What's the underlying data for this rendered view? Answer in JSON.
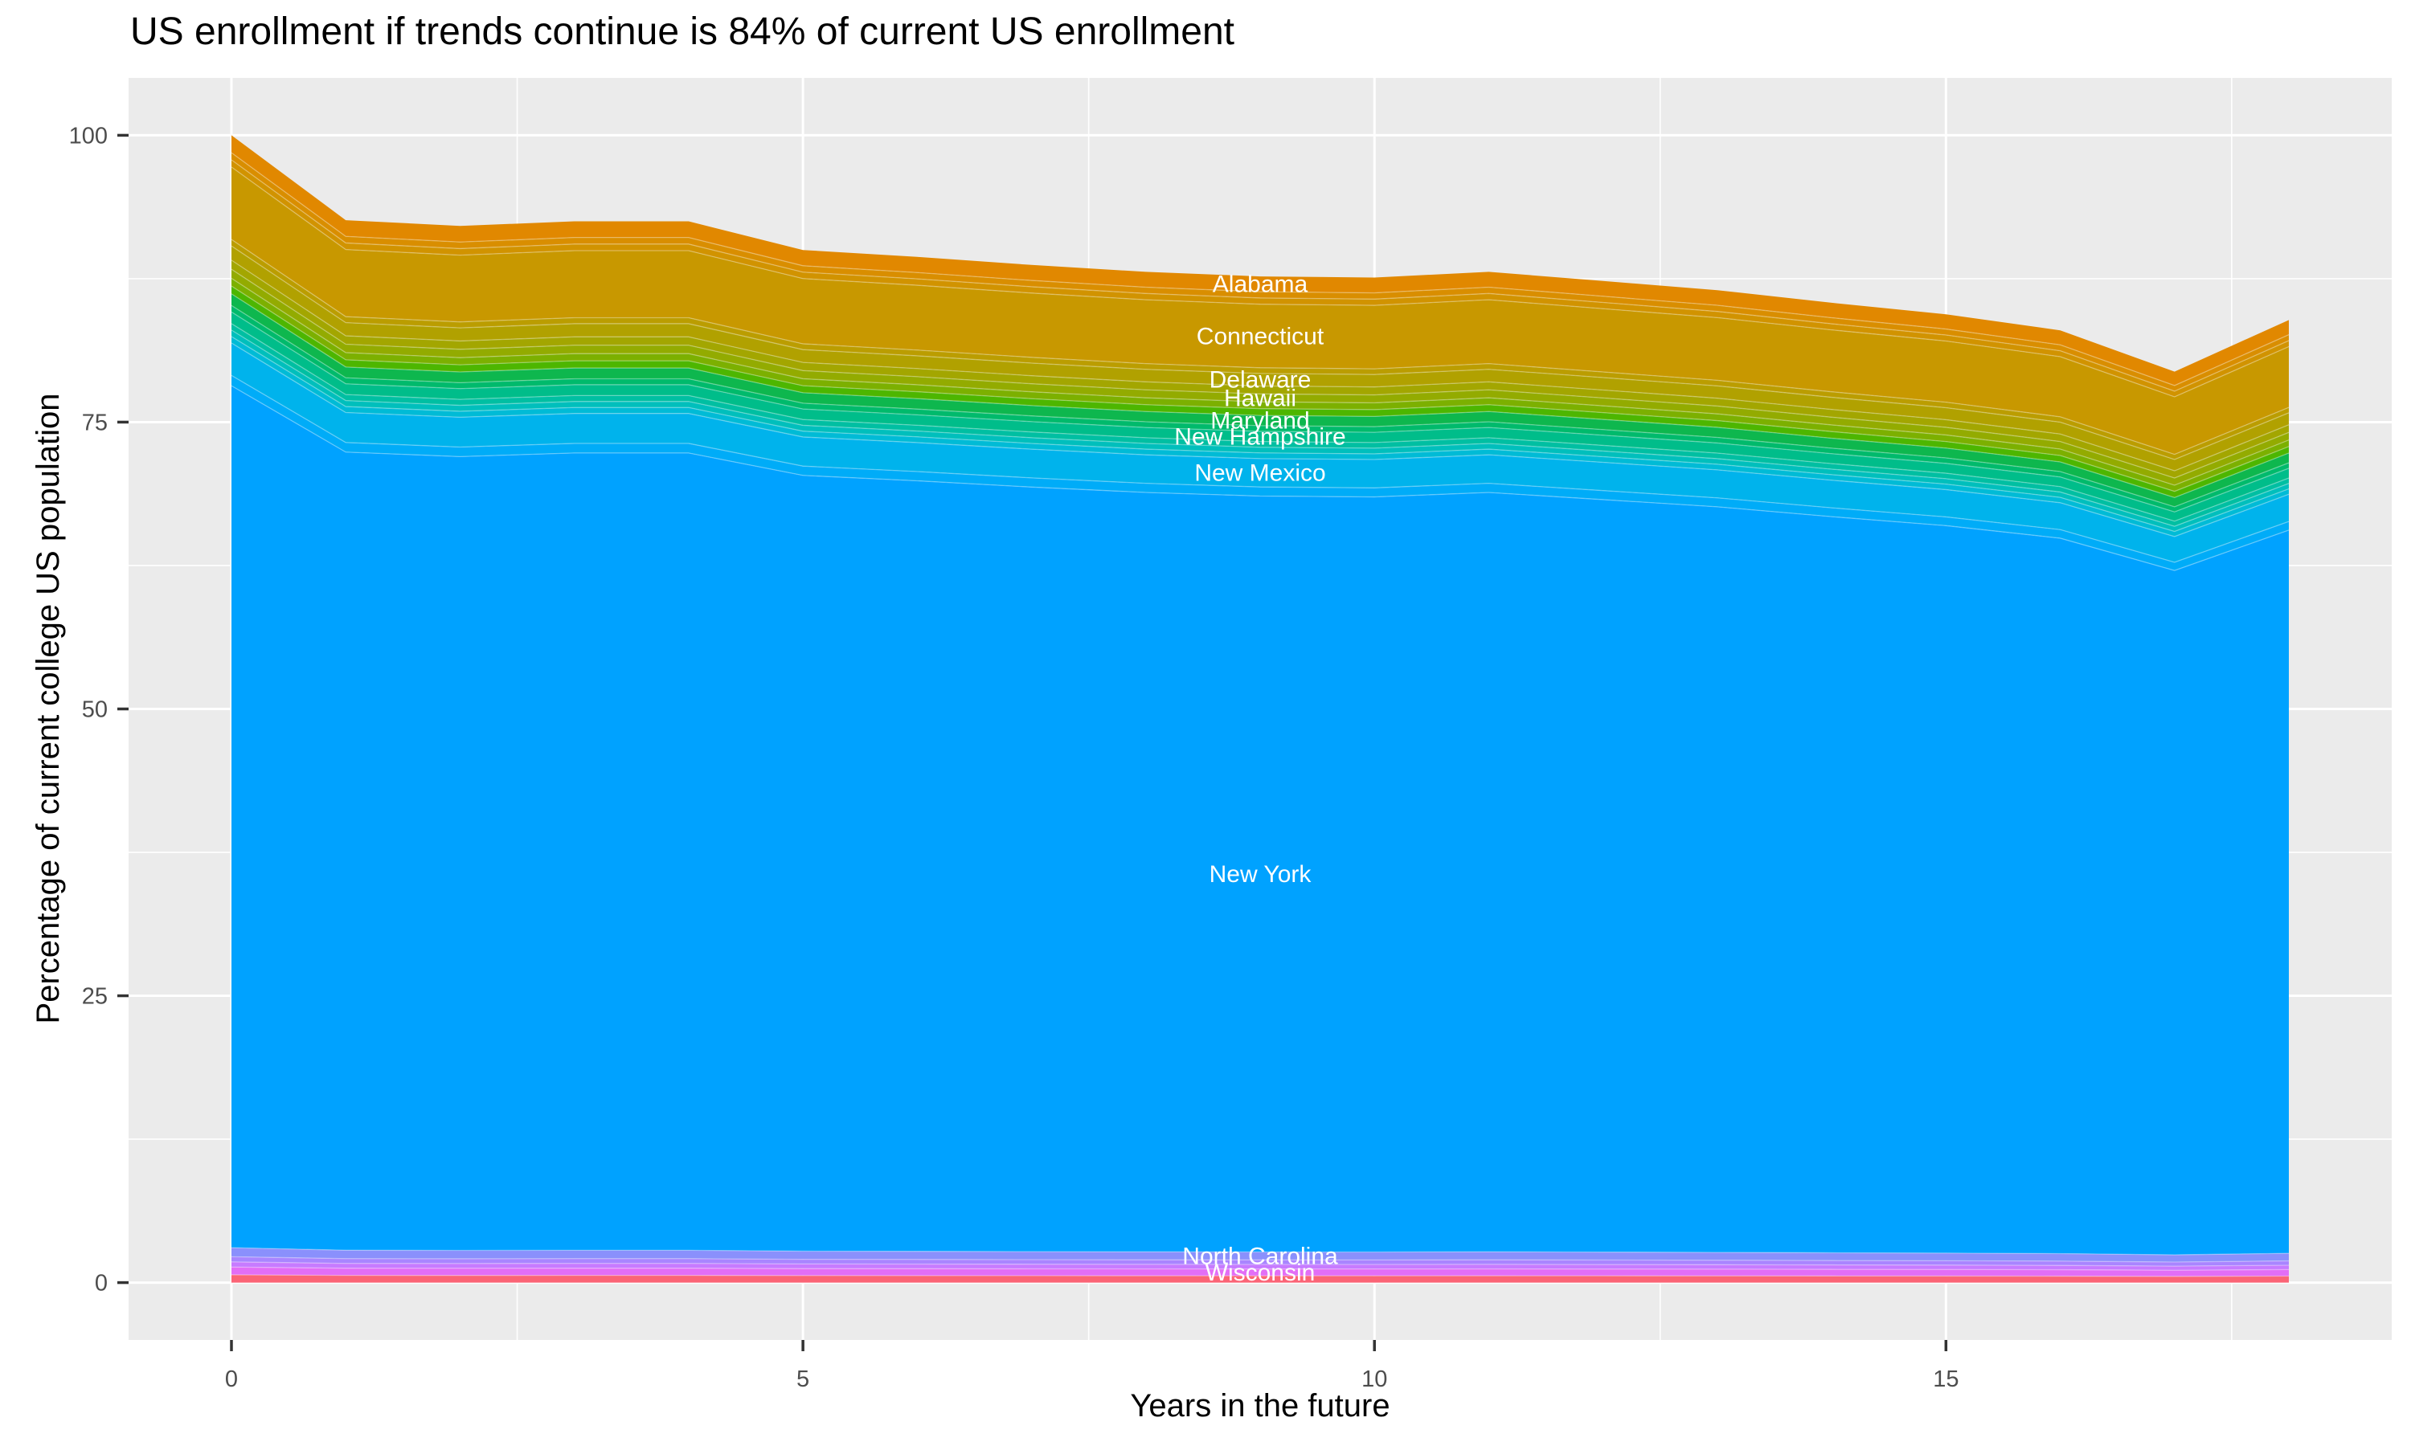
{
  "title": "US enrollment if trends continue is 84% of current US enrollment",
  "axes": {
    "x_label": "Years in the future",
    "y_label": "Percentage of current college US population",
    "x_tick_labels": [
      "0",
      "5",
      "10",
      "15"
    ],
    "y_tick_labels": [
      "0",
      "25",
      "50",
      "75",
      "100"
    ]
  },
  "colors": {
    "page_background": "#FFFFFF",
    "panel_background": "#EBEBEB",
    "gridline": "#FFFFFF",
    "tick_mark": "#333333",
    "tick_label_text": "#4D4D4D",
    "title_text": "#000000",
    "state_label_text": "#FFFFFF"
  },
  "chart_data": {
    "type": "area",
    "stacked": true,
    "title": "US enrollment if trends continue is 84% of current US enrollment",
    "xlabel": "Years in the future",
    "ylabel": "Percentage of current college US population",
    "x": [
      0,
      1,
      2,
      3,
      4,
      5,
      6,
      7,
      8,
      9,
      10,
      11,
      12,
      13,
      14,
      15,
      16,
      17,
      18
    ],
    "total_percent": [
      100,
      92.6,
      92.1,
      92.5,
      92.5,
      90.0,
      89.4,
      88.7,
      88.1,
      87.7,
      87.6,
      88.1,
      87.3,
      86.5,
      85.4,
      84.4,
      83.0,
      79.4,
      83.9
    ],
    "final_value_percent": 84,
    "xlim": [
      -0.9,
      18.9
    ],
    "ylim": [
      -5,
      105
    ],
    "x_ticks": [
      0,
      5,
      10,
      15
    ],
    "y_ticks": [
      0,
      25,
      50,
      75,
      100
    ],
    "x_minor_ticks": [
      2.5,
      7.5,
      12.5,
      17.5
    ],
    "y_minor_ticks": [
      12.5,
      37.5,
      62.5,
      87.5
    ],
    "grid": true,
    "legend": "none",
    "label_x": 9,
    "state_labels": [
      "Alabama",
      "Connecticut",
      "Delaware",
      "Hawaii",
      "Maryland",
      "New Hampshire",
      "New Mexico",
      "New York",
      "North Carolina",
      "Wisconsin"
    ],
    "series": [
      {
        "name": "Alabama",
        "share": 1.35,
        "color": "#E18800",
        "labeled": true
      },
      {
        "name": "",
        "share": 0.55,
        "color": "#D98E00",
        "labeled": false
      },
      {
        "name": "",
        "share": 0.55,
        "color": "#D19300",
        "labeled": false
      },
      {
        "name": "Connecticut",
        "share": 5.6,
        "color": "#C89800",
        "labeled": true
      },
      {
        "name": "",
        "share": 0.5,
        "color": "#BB9D00",
        "labeled": false
      },
      {
        "name": "Delaware",
        "share": 1.1,
        "color": "#B1A100",
        "labeled": true
      },
      {
        "name": "",
        "share": 0.7,
        "color": "#A3A600",
        "labeled": false
      },
      {
        "name": "Hawaii",
        "share": 0.7,
        "color": "#93AB00",
        "labeled": true
      },
      {
        "name": "",
        "share": 0.6,
        "color": "#7CB000",
        "labeled": false
      },
      {
        "name": "",
        "share": 0.6,
        "color": "#4DB600",
        "labeled": false
      },
      {
        "name": "Maryland",
        "share": 0.9,
        "color": "#0EB74E",
        "labeled": true
      },
      {
        "name": "",
        "share": 0.5,
        "color": "#00BA6C",
        "labeled": false
      },
      {
        "name": "New Hampshire",
        "share": 0.9,
        "color": "#00BD8A",
        "labeled": true
      },
      {
        "name": "",
        "share": 0.5,
        "color": "#00BFA2",
        "labeled": false
      },
      {
        "name": "",
        "share": 0.5,
        "color": "#00BFBC",
        "labeled": false
      },
      {
        "name": "",
        "share": 0.5,
        "color": "#00BBD6",
        "labeled": false
      },
      {
        "name": "New Mexico",
        "share": 2.5,
        "color": "#00B3EC",
        "labeled": true
      },
      {
        "name": "",
        "share": 0.8,
        "color": "#00ACF8",
        "labeled": false
      },
      {
        "name": "New York",
        "share": 66.6,
        "color": "#00A2FF",
        "labeled": true
      },
      {
        "name": "North Carolina",
        "share": 0.7,
        "color": "#8A90FC",
        "labeled": true
      },
      {
        "name": "",
        "share": 0.4,
        "color": "#A985FF",
        "labeled": false
      },
      {
        "name": "",
        "share": 0.4,
        "color": "#C77BFF",
        "labeled": false
      },
      {
        "name": "Wisconsin",
        "share": 0.6,
        "color": "#E26EF6",
        "labeled": true
      },
      {
        "name": "",
        "share": 0.6,
        "color": "#FB6476",
        "labeled": false
      }
    ]
  }
}
